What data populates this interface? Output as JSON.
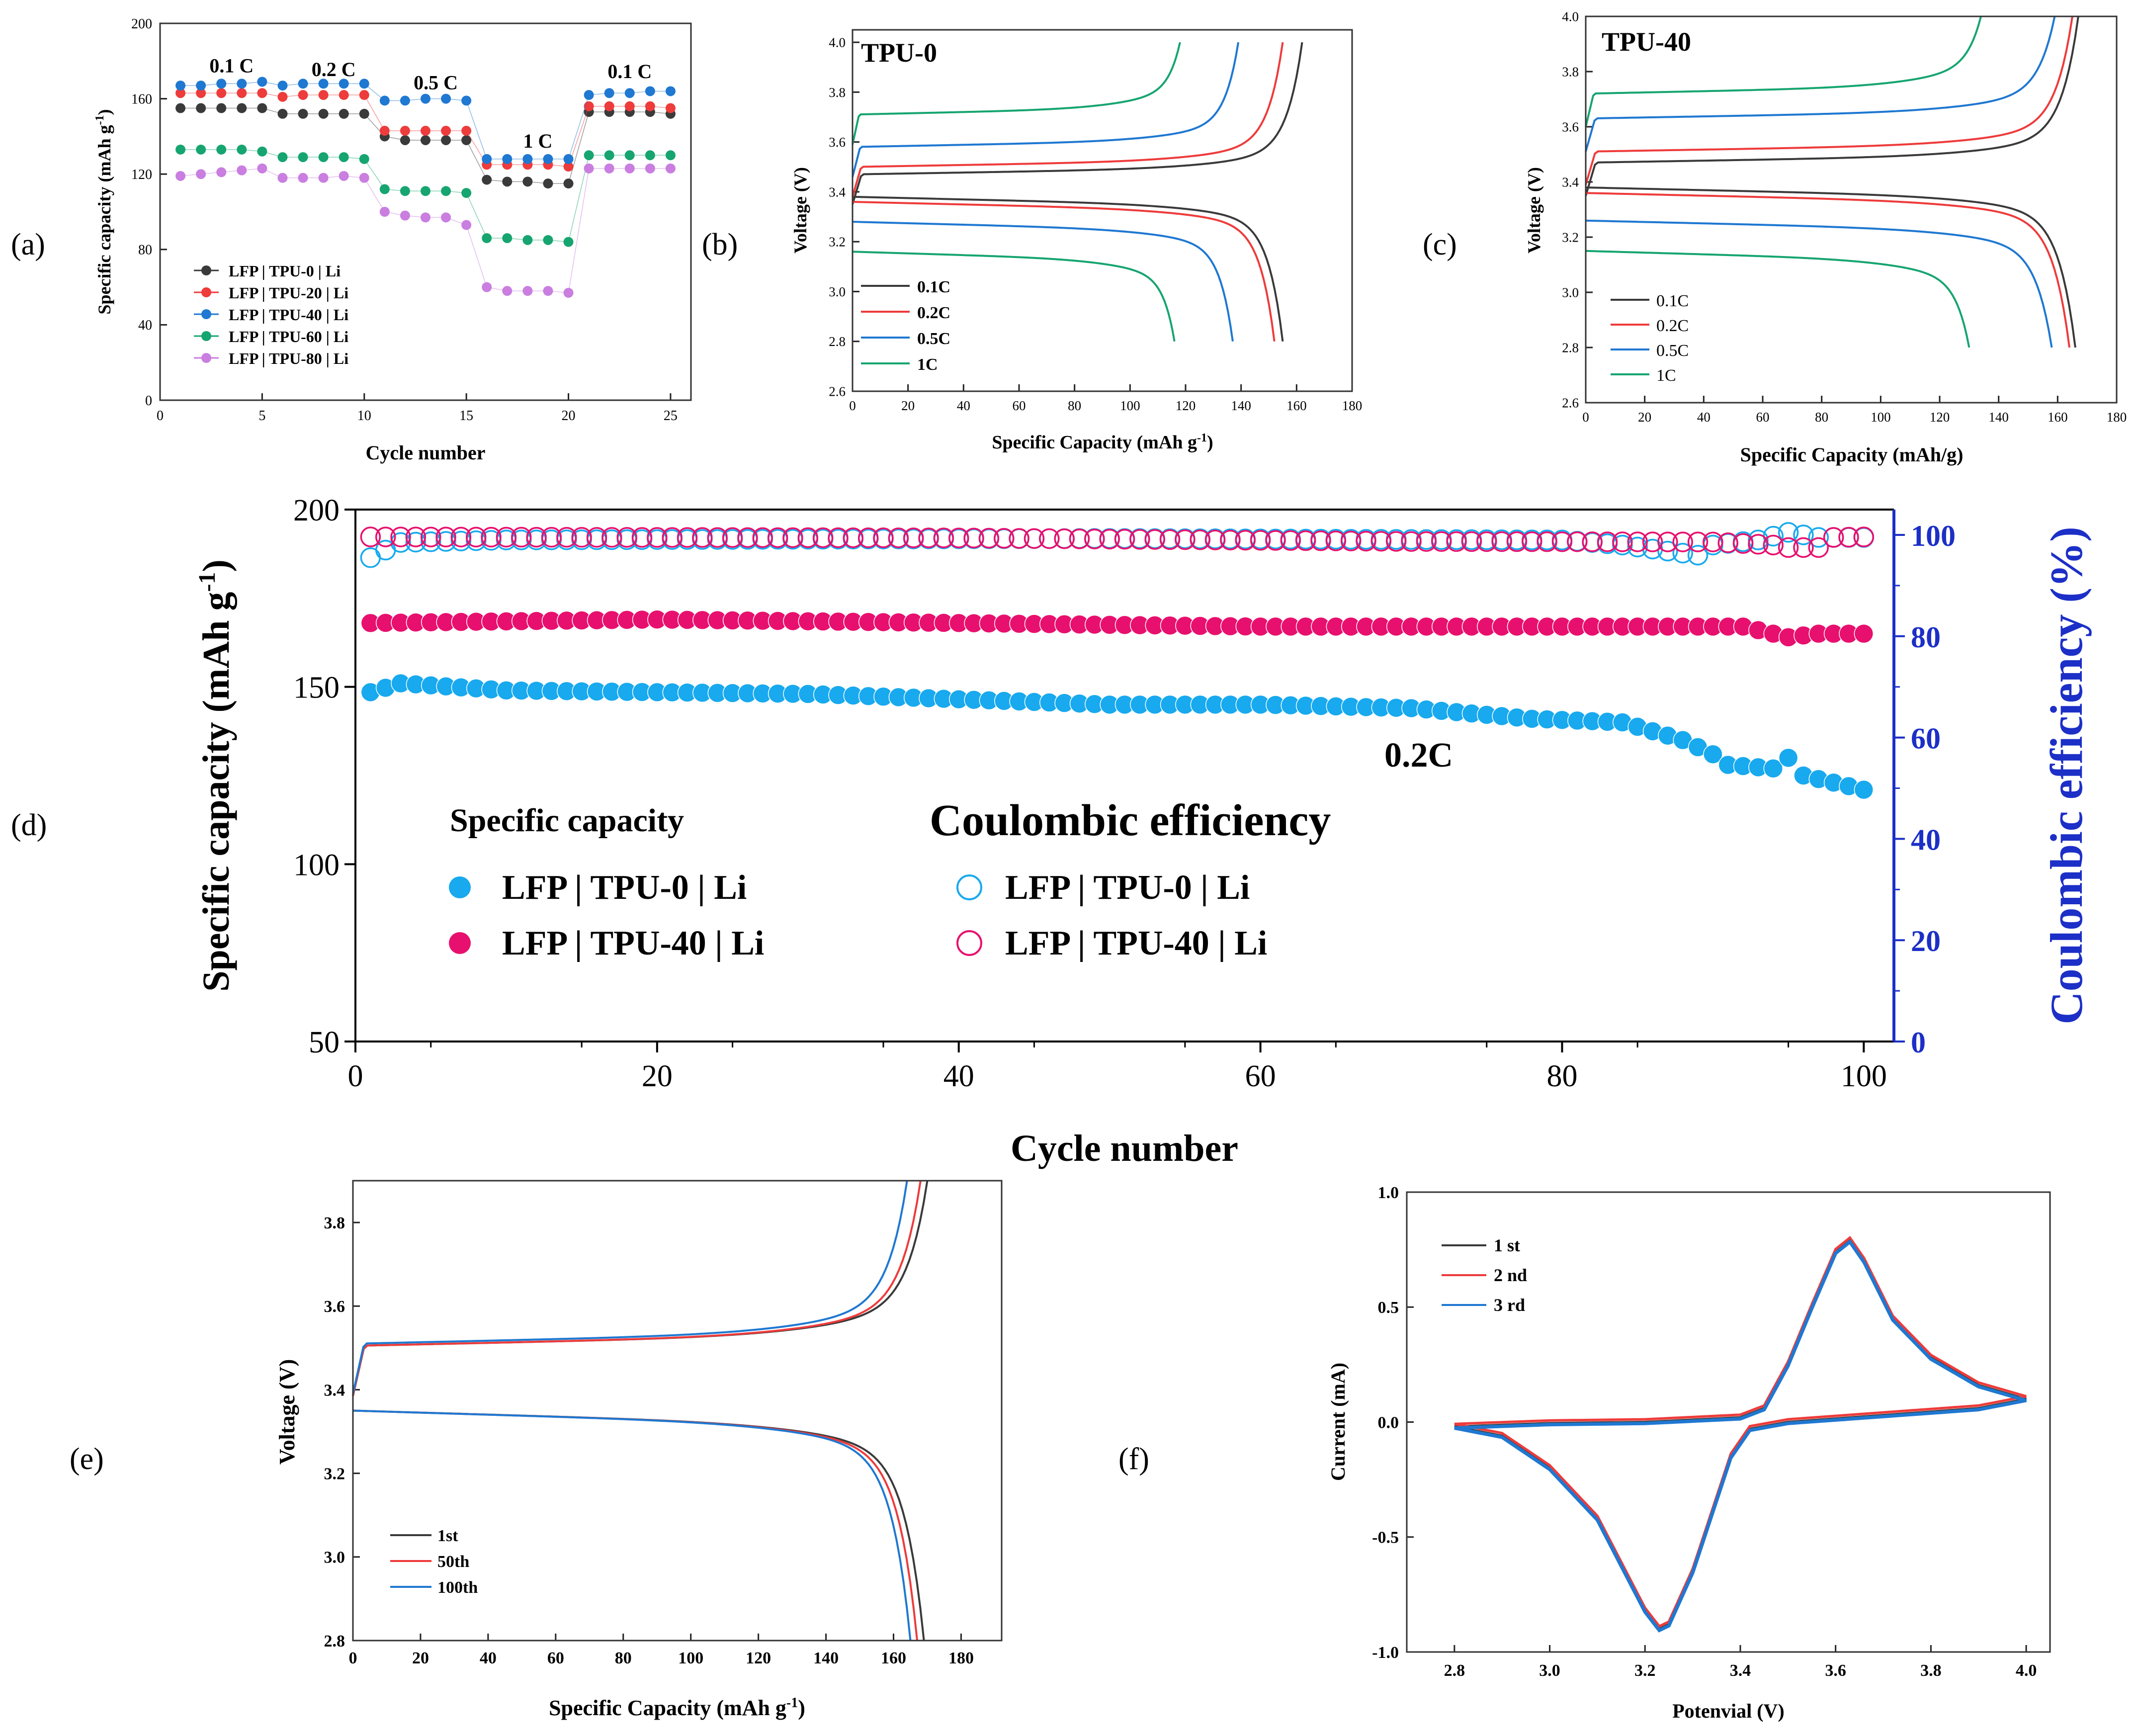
{
  "colors": {
    "black": "#3a3a3a",
    "red": "#ee3b3b",
    "blue": "#1f78d1",
    "green": "#16a570",
    "violet": "#c97ee0",
    "cyan": "#18a9ee",
    "pink": "#e8106e",
    "axisBlue": "#1c2fc7"
  },
  "panel_labels": [
    "(a)",
    "(b)",
    "(c)",
    "(d)",
    "(e)",
    "(f)"
  ],
  "chart_data": [
    {
      "panel": "a",
      "type": "scatter",
      "xlabel": "Cycle number",
      "ylabel": "Specific capacity (mAh g-1)",
      "ylabel_main": "Specific capacity (mAh g",
      "ylabel_sup": "-1",
      "ylabel_end": ")",
      "xlim": [
        0,
        26
      ],
      "ylim": [
        0,
        200
      ],
      "xticks": [
        0,
        5,
        10,
        15,
        20,
        25
      ],
      "yticks": [
        0,
        40,
        80,
        120,
        160,
        200
      ],
      "annotations": [
        {
          "text": "0.1 C",
          "x": 3.5,
          "y": 174
        },
        {
          "text": "0.2 C",
          "x": 8.5,
          "y": 172
        },
        {
          "text": "0.5 C",
          "x": 13.5,
          "y": 165
        },
        {
          "text": "1 C",
          "x": 18.5,
          "y": 134
        },
        {
          "text": "0.1 C",
          "x": 23,
          "y": 171
        }
      ],
      "series": [
        {
          "name": "LFP | TPU-0 | Li",
          "color": "#3a3a3a",
          "values": [
            155,
            155,
            155,
            155,
            155,
            152,
            152,
            152,
            152,
            152,
            140,
            138,
            138,
            138,
            138,
            117,
            116,
            116,
            115,
            115,
            153,
            153,
            153,
            153,
            152
          ]
        },
        {
          "name": "LFP | TPU-20 | Li",
          "color": "#ee3b3b",
          "values": [
            163,
            163,
            163,
            163,
            163,
            161,
            162,
            162,
            162,
            162,
            143,
            143,
            143,
            143,
            143,
            125,
            125,
            125,
            125,
            124,
            156,
            156,
            156,
            156,
            155
          ]
        },
        {
          "name": "LFP | TPU-40 | Li",
          "color": "#1f78d1",
          "values": [
            167,
            167,
            168,
            168,
            169,
            167,
            168,
            168,
            168,
            168,
            159,
            159,
            160,
            160,
            159,
            128,
            128,
            128,
            128,
            128,
            162,
            163,
            163,
            164,
            164
          ]
        },
        {
          "name": "LFP | TPU-60 | Li",
          "color": "#16a570",
          "values": [
            133,
            133,
            133,
            133,
            132,
            129,
            129,
            129,
            129,
            128,
            112,
            111,
            111,
            111,
            110,
            86,
            86,
            85,
            85,
            84,
            130,
            130,
            130,
            130,
            130
          ]
        },
        {
          "name": "LFP | TPU-80 | Li",
          "color": "#c97ee0",
          "values": [
            119,
            120,
            121,
            122,
            123,
            118,
            118,
            118,
            119,
            118,
            100,
            98,
            97,
            97,
            93,
            60,
            58,
            58,
            58,
            57,
            123,
            123,
            123,
            123,
            123
          ]
        }
      ]
    },
    {
      "panel": "b",
      "type": "line",
      "title": "TPU-0",
      "xlabel": "Specific Capacity (mAh g-1)",
      "xlabel_main": "Specific Capacity (mAh g",
      "xlabel_sup": "-1",
      "xlabel_end": ")",
      "ylabel": "Voltage (V)",
      "xlim": [
        0,
        180
      ],
      "ylim": [
        2.6,
        4.05
      ],
      "xticks": [
        0,
        20,
        40,
        60,
        80,
        100,
        120,
        140,
        160,
        180
      ],
      "yticks": [
        2.6,
        2.8,
        3.0,
        3.2,
        3.4,
        3.6,
        3.8,
        4.0
      ],
      "series": [
        {
          "name": "0.1C",
          "color": "#3a3a3a",
          "charge_plateau": 3.47,
          "charge_end": 162,
          "discharge_plateau": 3.38,
          "discharge_end": 155
        },
        {
          "name": "0.2C",
          "color": "#ee3b3b",
          "charge_plateau": 3.5,
          "charge_end": 155,
          "discharge_plateau": 3.36,
          "discharge_end": 152
        },
        {
          "name": "0.5C",
          "color": "#1f78d1",
          "charge_plateau": 3.58,
          "charge_end": 139,
          "discharge_plateau": 3.28,
          "discharge_end": 137
        },
        {
          "name": "1C",
          "color": "#16a570",
          "charge_plateau": 3.71,
          "charge_end": 118,
          "discharge_plateau": 3.16,
          "discharge_end": 116
        }
      ]
    },
    {
      "panel": "c",
      "type": "line",
      "title": "TPU-40",
      "xlabel": "Specific Capacity (mAh/g)",
      "ylabel": "Voltage (V)",
      "xlim": [
        0,
        180
      ],
      "ylim": [
        2.6,
        4.0
      ],
      "xticks": [
        0,
        20,
        40,
        60,
        80,
        100,
        120,
        140,
        160,
        180
      ],
      "yticks": [
        2.6,
        2.8,
        3.0,
        3.2,
        3.4,
        3.6,
        3.8,
        4.0
      ],
      "series": [
        {
          "name": "0.1C",
          "color": "#3a3a3a",
          "charge_plateau": 3.47,
          "charge_end": 167,
          "discharge_plateau": 3.38,
          "discharge_end": 166
        },
        {
          "name": "0.2C",
          "color": "#ee3b3b",
          "charge_plateau": 3.51,
          "charge_end": 165,
          "discharge_plateau": 3.36,
          "discharge_end": 164
        },
        {
          "name": "0.5C",
          "color": "#1f78d1",
          "charge_plateau": 3.63,
          "charge_end": 159,
          "discharge_plateau": 3.26,
          "discharge_end": 158
        },
        {
          "name": "1C",
          "color": "#16a570",
          "charge_plateau": 3.72,
          "charge_end": 134,
          "discharge_plateau": 3.15,
          "discharge_end": 130
        }
      ]
    },
    {
      "panel": "d",
      "type": "scatter",
      "xlabel": "Cycle number",
      "ylabel": "Specific capacity (mAh g-1)",
      "ylabel_main": "Specific capacity (mAh g",
      "ylabel_sup": "-1",
      "ylabel_end": ")",
      "ylabel_right": "Coulombic efficiency (%)",
      "xlim": [
        0,
        102
      ],
      "ylim": [
        50,
        200
      ],
      "ylim_right": [
        0,
        105
      ],
      "xticks": [
        0,
        20,
        40,
        60,
        80,
        100
      ],
      "yticks": [
        50,
        100,
        150,
        200
      ],
      "yticks_right": [
        0,
        20,
        40,
        60,
        80,
        100
      ],
      "annotation": "0.2C",
      "legend_headers": [
        "Specific capacity",
        "Coulombic efficiency"
      ],
      "series": [
        {
          "name": "LFP | TPU-0 | Li",
          "role": "capacity",
          "color": "#18a9ee",
          "filled": true,
          "cycles": 100,
          "anchors": [
            [
              1,
              148.5
            ],
            [
              3,
              151
            ],
            [
              10,
              149
            ],
            [
              30,
              148
            ],
            [
              50,
              145
            ],
            [
              60,
              145
            ],
            [
              70,
              144
            ],
            [
              78,
              141
            ],
            [
              84,
              140
            ],
            [
              88,
              135
            ],
            [
              90,
              131
            ],
            [
              91,
              128
            ],
            [
              94,
              127
            ],
            [
              95,
              130
            ],
            [
              96,
              125
            ],
            [
              98,
              123
            ],
            [
              100,
              121
            ]
          ]
        },
        {
          "name": "LFP | TPU-40 | Li",
          "role": "capacity",
          "color": "#e8106e",
          "filled": true,
          "cycles": 100,
          "anchors": [
            [
              1,
              168
            ],
            [
              20,
              169
            ],
            [
              40,
              168
            ],
            [
              60,
              167
            ],
            [
              84,
              167
            ],
            [
              92,
              167
            ],
            [
              95,
              164
            ],
            [
              97,
              165
            ],
            [
              100,
              165
            ]
          ]
        },
        {
          "name": "LFP | TPU-0 | Li",
          "role": "efficiency",
          "color": "#18a9ee",
          "filled": false,
          "cycles": 100,
          "anchors": [
            [
              1,
              95.5
            ],
            [
              3,
              98.5
            ],
            [
              10,
              99
            ],
            [
              50,
              99.3
            ],
            [
              80,
              99
            ],
            [
              84,
              98
            ],
            [
              89,
              96
            ],
            [
              90,
              98
            ],
            [
              93,
              99
            ],
            [
              95,
              100.5
            ],
            [
              97,
              99.5
            ],
            [
              100,
              99.5
            ]
          ]
        },
        {
          "name": "LFP | TPU-40 | Li",
          "role": "efficiency",
          "color": "#e8106e",
          "filled": false,
          "cycles": 100,
          "anchors": [
            [
              1,
              99.6
            ],
            [
              40,
              99.4
            ],
            [
              70,
              98.7
            ],
            [
              90,
              98.6
            ],
            [
              94,
              98
            ],
            [
              95,
              97.5
            ],
            [
              97,
              97.5
            ],
            [
              98,
              99.5
            ],
            [
              100,
              99.6
            ]
          ]
        }
      ]
    },
    {
      "panel": "e",
      "type": "line",
      "xlabel": "Specific Capacity (mAh g-1)",
      "xlabel_main": "Specific Capacity (mAh g",
      "xlabel_sup": "-1",
      "xlabel_end": ")",
      "ylabel": "Voltage (V)",
      "xlim": [
        0,
        192
      ],
      "ylim": [
        2.8,
        3.9
      ],
      "xticks": [
        0,
        20,
        40,
        60,
        80,
        100,
        120,
        140,
        160,
        180
      ],
      "yticks": [
        2.8,
        3.0,
        3.2,
        3.4,
        3.6,
        3.8
      ],
      "series": [
        {
          "name": "1st",
          "color": "#3a3a3a",
          "charge_plateau": 3.505,
          "charge_end": 170,
          "discharge_plateau": 3.35,
          "discharge_end": 169
        },
        {
          "name": "50th",
          "color": "#ee3b3b",
          "charge_plateau": 3.505,
          "charge_end": 168,
          "discharge_plateau": 3.35,
          "discharge_end": 167
        },
        {
          "name": "100th",
          "color": "#1f78d1",
          "charge_plateau": 3.51,
          "charge_end": 164,
          "discharge_plateau": 3.35,
          "discharge_end": 165
        }
      ]
    },
    {
      "panel": "f",
      "type": "line",
      "xlabel": "Potenvial (V)",
      "ylabel": "Current (mA)",
      "xlim": [
        2.7,
        4.05
      ],
      "ylim": [
        -1.0,
        1.0
      ],
      "xticks": [
        2.8,
        3.0,
        3.2,
        3.4,
        3.6,
        3.8,
        4.0
      ],
      "yticks": [
        -1.0,
        -0.5,
        0.0,
        0.5,
        1.0
      ],
      "xtick_labels": [
        "2.8",
        "3.0",
        "3.2",
        "3.4",
        "3.6",
        "3.8",
        "4.0"
      ],
      "ytick_labels": [
        "-1.0",
        "-0.5",
        "0.0",
        "0.5",
        "1.0"
      ],
      "series": [
        {
          "name": "1 st",
          "color": "#3a3a3a",
          "dy": 0.0
        },
        {
          "name": "2 nd",
          "color": "#ee3b3b",
          "dy": 0.012
        },
        {
          "name": "3 rd",
          "color": "#1f78d1",
          "dy": -0.006
        }
      ],
      "cv_anchors_anodic": [
        [
          2.8,
          -0.02
        ],
        [
          3.0,
          -0.005
        ],
        [
          3.2,
          0.0
        ],
        [
          3.4,
          0.02
        ],
        [
          3.45,
          0.06
        ],
        [
          3.5,
          0.25
        ],
        [
          3.55,
          0.5
        ],
        [
          3.6,
          0.74
        ],
        [
          3.63,
          0.79
        ],
        [
          3.66,
          0.7
        ],
        [
          3.72,
          0.45
        ],
        [
          3.8,
          0.28
        ],
        [
          3.9,
          0.16
        ],
        [
          4.0,
          0.1
        ]
      ],
      "cv_anchors_cathodic": [
        [
          4.0,
          0.1
        ],
        [
          3.9,
          0.06
        ],
        [
          3.7,
          0.03
        ],
        [
          3.5,
          0.0
        ],
        [
          3.42,
          -0.03
        ],
        [
          3.38,
          -0.15
        ],
        [
          3.34,
          -0.4
        ],
        [
          3.3,
          -0.65
        ],
        [
          3.25,
          -0.88
        ],
        [
          3.23,
          -0.9
        ],
        [
          3.2,
          -0.82
        ],
        [
          3.1,
          -0.42
        ],
        [
          3.0,
          -0.2
        ],
        [
          2.9,
          -0.06
        ],
        [
          2.8,
          -0.02
        ]
      ]
    }
  ]
}
